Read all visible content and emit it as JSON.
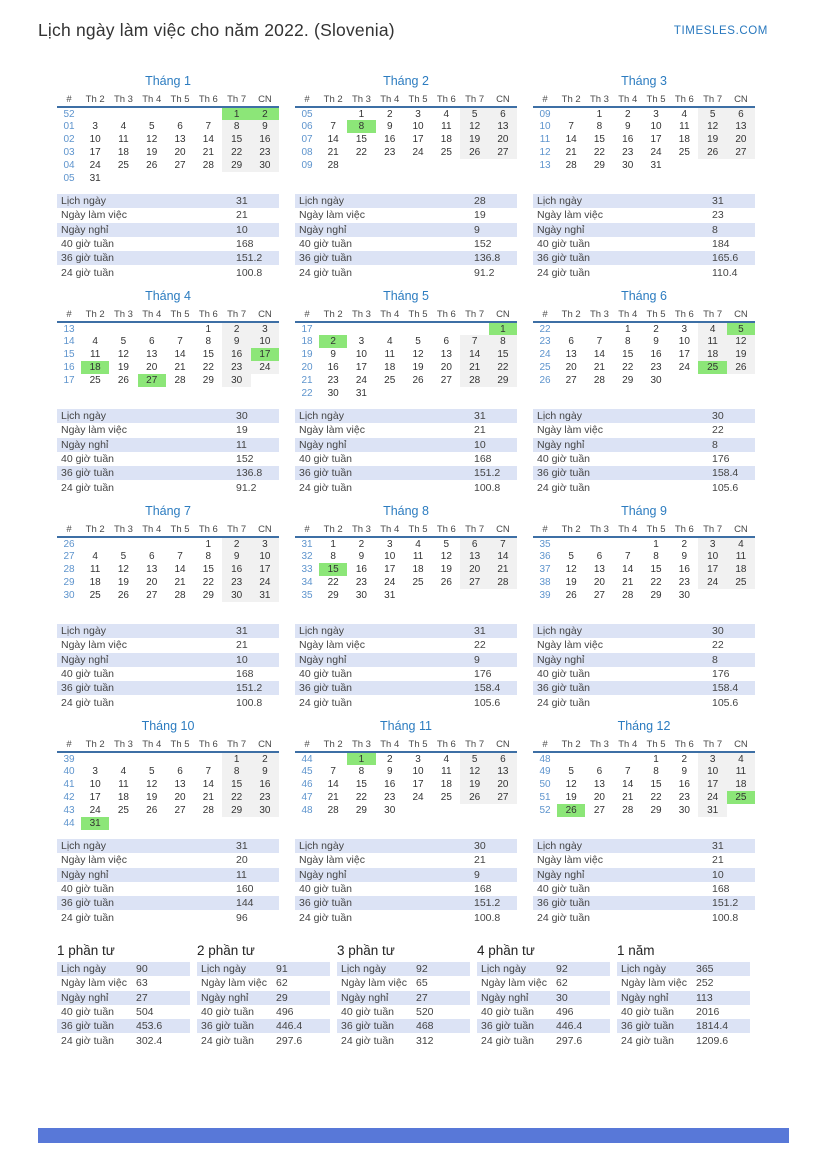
{
  "page": {
    "title": "Lịch ngày làm việc cho năm 2022. (Slovenia)",
    "site": "TIMESLES.COM"
  },
  "colors": {
    "accent_blue": "#2c7cc0",
    "week_number_blue": "#5e94cd",
    "header_rule_blue": "#3d6fa5",
    "holiday_green": "#8ce678",
    "weekend_gray": "#f1f1f1",
    "row_shade_blue": "#dce3f5",
    "footer_bar_blue": "#5878d8"
  },
  "calendar": {
    "day_headers": [
      "#",
      "Th 2",
      "Th 3",
      "Th 4",
      "Th 5",
      "Th 6",
      "Th 7",
      "CN"
    ],
    "stat_labels": [
      "Lịch ngày",
      "Ngày làm việc",
      "Ngày nghỉ",
      "40 giờ tuần",
      "36 giờ tuần",
      "24 giờ tuần"
    ],
    "months": [
      {
        "name": "Tháng 1",
        "holidays": [
          1,
          2
        ],
        "weeks": [
          {
            "n": "52",
            "d": [
              "",
              "",
              "",
              "",
              "",
              "1",
              "2"
            ]
          },
          {
            "n": "01",
            "d": [
              "3",
              "4",
              "5",
              "6",
              "7",
              "8",
              "9"
            ]
          },
          {
            "n": "02",
            "d": [
              "10",
              "11",
              "12",
              "13",
              "14",
              "15",
              "16"
            ]
          },
          {
            "n": "03",
            "d": [
              "17",
              "18",
              "19",
              "20",
              "21",
              "22",
              "23"
            ]
          },
          {
            "n": "04",
            "d": [
              "24",
              "25",
              "26",
              "27",
              "28",
              "29",
              "30"
            ]
          },
          {
            "n": "05",
            "d": [
              "31",
              "",
              "",
              "",
              "",
              "",
              ""
            ]
          }
        ],
        "stats": [
          "31",
          "21",
          "10",
          "168",
          "151.2",
          "100.8"
        ]
      },
      {
        "name": "Tháng 2",
        "holidays": [
          8
        ],
        "weeks": [
          {
            "n": "05",
            "d": [
              "",
              "1",
              "2",
              "3",
              "4",
              "5",
              "6"
            ]
          },
          {
            "n": "06",
            "d": [
              "7",
              "8",
              "9",
              "10",
              "11",
              "12",
              "13"
            ]
          },
          {
            "n": "07",
            "d": [
              "14",
              "15",
              "16",
              "17",
              "18",
              "19",
              "20"
            ]
          },
          {
            "n": "08",
            "d": [
              "21",
              "22",
              "23",
              "24",
              "25",
              "26",
              "27"
            ]
          },
          {
            "n": "09",
            "d": [
              "28",
              "",
              "",
              "",
              "",
              "",
              ""
            ]
          }
        ],
        "stats": [
          "28",
          "19",
          "9",
          "152",
          "136.8",
          "91.2"
        ]
      },
      {
        "name": "Tháng 3",
        "holidays": [],
        "weeks": [
          {
            "n": "09",
            "d": [
              "",
              "1",
              "2",
              "3",
              "4",
              "5",
              "6"
            ]
          },
          {
            "n": "10",
            "d": [
              "7",
              "8",
              "9",
              "10",
              "11",
              "12",
              "13"
            ]
          },
          {
            "n": "11",
            "d": [
              "14",
              "15",
              "16",
              "17",
              "18",
              "19",
              "20"
            ]
          },
          {
            "n": "12",
            "d": [
              "21",
              "22",
              "23",
              "24",
              "25",
              "26",
              "27"
            ]
          },
          {
            "n": "13",
            "d": [
              "28",
              "29",
              "30",
              "31",
              "",
              "",
              ""
            ]
          }
        ],
        "stats": [
          "31",
          "23",
          "8",
          "184",
          "165.6",
          "110.4"
        ]
      },
      {
        "name": "Tháng 4",
        "holidays": [
          17,
          18,
          27
        ],
        "weeks": [
          {
            "n": "13",
            "d": [
              "",
              "",
              "",
              "",
              "1",
              "2",
              "3"
            ]
          },
          {
            "n": "14",
            "d": [
              "4",
              "5",
              "6",
              "7",
              "8",
              "9",
              "10"
            ]
          },
          {
            "n": "15",
            "d": [
              "11",
              "12",
              "13",
              "14",
              "15",
              "16",
              "17"
            ]
          },
          {
            "n": "16",
            "d": [
              "18",
              "19",
              "20",
              "21",
              "22",
              "23",
              "24"
            ]
          },
          {
            "n": "17",
            "d": [
              "25",
              "26",
              "27",
              "28",
              "29",
              "30",
              ""
            ]
          }
        ],
        "stats": [
          "30",
          "19",
          "11",
          "152",
          "136.8",
          "91.2"
        ]
      },
      {
        "name": "Tháng 5",
        "holidays": [
          1,
          2
        ],
        "weeks": [
          {
            "n": "17",
            "d": [
              "",
              "",
              "",
              "",
              "",
              "",
              "1"
            ]
          },
          {
            "n": "18",
            "d": [
              "2",
              "3",
              "4",
              "5",
              "6",
              "7",
              "8"
            ]
          },
          {
            "n": "19",
            "d": [
              "9",
              "10",
              "11",
              "12",
              "13",
              "14",
              "15"
            ]
          },
          {
            "n": "20",
            "d": [
              "16",
              "17",
              "18",
              "19",
              "20",
              "21",
              "22"
            ]
          },
          {
            "n": "21",
            "d": [
              "23",
              "24",
              "25",
              "26",
              "27",
              "28",
              "29"
            ]
          },
          {
            "n": "22",
            "d": [
              "30",
              "31",
              "",
              "",
              "",
              "",
              ""
            ]
          }
        ],
        "stats": [
          "31",
          "21",
          "10",
          "168",
          "151.2",
          "100.8"
        ]
      },
      {
        "name": "Tháng 6",
        "holidays": [
          5,
          25
        ],
        "weeks": [
          {
            "n": "22",
            "d": [
              "",
              "",
              "1",
              "2",
              "3",
              "4",
              "5"
            ]
          },
          {
            "n": "23",
            "d": [
              "6",
              "7",
              "8",
              "9",
              "10",
              "11",
              "12"
            ]
          },
          {
            "n": "24",
            "d": [
              "13",
              "14",
              "15",
              "16",
              "17",
              "18",
              "19"
            ]
          },
          {
            "n": "25",
            "d": [
              "20",
              "21",
              "22",
              "23",
              "24",
              "25",
              "26"
            ]
          },
          {
            "n": "26",
            "d": [
              "27",
              "28",
              "29",
              "30",
              "",
              "",
              ""
            ]
          }
        ],
        "stats": [
          "30",
          "22",
          "8",
          "176",
          "158.4",
          "105.6"
        ]
      },
      {
        "name": "Tháng 7",
        "holidays": [],
        "weeks": [
          {
            "n": "26",
            "d": [
              "",
              "",
              "",
              "",
              "1",
              "2",
              "3"
            ]
          },
          {
            "n": "27",
            "d": [
              "4",
              "5",
              "6",
              "7",
              "8",
              "9",
              "10"
            ]
          },
          {
            "n": "28",
            "d": [
              "11",
              "12",
              "13",
              "14",
              "15",
              "16",
              "17"
            ]
          },
          {
            "n": "29",
            "d": [
              "18",
              "19",
              "20",
              "21",
              "22",
              "23",
              "24"
            ]
          },
          {
            "n": "30",
            "d": [
              "25",
              "26",
              "27",
              "28",
              "29",
              "30",
              "31"
            ]
          }
        ],
        "stats": [
          "31",
          "21",
          "10",
          "168",
          "151.2",
          "100.8"
        ]
      },
      {
        "name": "Tháng 8",
        "holidays": [
          15
        ],
        "weeks": [
          {
            "n": "31",
            "d": [
              "1",
              "2",
              "3",
              "4",
              "5",
              "6",
              "7"
            ]
          },
          {
            "n": "32",
            "d": [
              "8",
              "9",
              "10",
              "11",
              "12",
              "13",
              "14"
            ]
          },
          {
            "n": "33",
            "d": [
              "15",
              "16",
              "17",
              "18",
              "19",
              "20",
              "21"
            ]
          },
          {
            "n": "34",
            "d": [
              "22",
              "23",
              "24",
              "25",
              "26",
              "27",
              "28"
            ]
          },
          {
            "n": "35",
            "d": [
              "29",
              "30",
              "31",
              "",
              "",
              "",
              ""
            ]
          }
        ],
        "stats": [
          "31",
          "22",
          "9",
          "176",
          "158.4",
          "105.6"
        ]
      },
      {
        "name": "Tháng 9",
        "holidays": [],
        "weeks": [
          {
            "n": "35",
            "d": [
              "",
              "",
              "",
              "1",
              "2",
              "3",
              "4"
            ]
          },
          {
            "n": "36",
            "d": [
              "5",
              "6",
              "7",
              "8",
              "9",
              "10",
              "11"
            ]
          },
          {
            "n": "37",
            "d": [
              "12",
              "13",
              "14",
              "15",
              "16",
              "17",
              "18"
            ]
          },
          {
            "n": "38",
            "d": [
              "19",
              "20",
              "21",
              "22",
              "23",
              "24",
              "25"
            ]
          },
          {
            "n": "39",
            "d": [
              "26",
              "27",
              "28",
              "29",
              "30",
              "",
              ""
            ]
          }
        ],
        "stats": [
          "30",
          "22",
          "8",
          "176",
          "158.4",
          "105.6"
        ]
      },
      {
        "name": "Tháng 10",
        "holidays": [
          31
        ],
        "weeks": [
          {
            "n": "39",
            "d": [
              "",
              "",
              "",
              "",
              "",
              "1",
              "2"
            ]
          },
          {
            "n": "40",
            "d": [
              "3",
              "4",
              "5",
              "6",
              "7",
              "8",
              "9"
            ]
          },
          {
            "n": "41",
            "d": [
              "10",
              "11",
              "12",
              "13",
              "14",
              "15",
              "16"
            ]
          },
          {
            "n": "42",
            "d": [
              "17",
              "18",
              "19",
              "20",
              "21",
              "22",
              "23"
            ]
          },
          {
            "n": "43",
            "d": [
              "24",
              "25",
              "26",
              "27",
              "28",
              "29",
              "30"
            ]
          },
          {
            "n": "44",
            "d": [
              "31",
              "",
              "",
              "",
              "",
              "",
              ""
            ]
          }
        ],
        "stats": [
          "31",
          "20",
          "11",
          "160",
          "144",
          "96"
        ]
      },
      {
        "name": "Tháng 11",
        "holidays": [
          1
        ],
        "weeks": [
          {
            "n": "44",
            "d": [
              "",
              "1",
              "2",
              "3",
              "4",
              "5",
              "6"
            ]
          },
          {
            "n": "45",
            "d": [
              "7",
              "8",
              "9",
              "10",
              "11",
              "12",
              "13"
            ]
          },
          {
            "n": "46",
            "d": [
              "14",
              "15",
              "16",
              "17",
              "18",
              "19",
              "20"
            ]
          },
          {
            "n": "47",
            "d": [
              "21",
              "22",
              "23",
              "24",
              "25",
              "26",
              "27"
            ]
          },
          {
            "n": "48",
            "d": [
              "28",
              "29",
              "30",
              "",
              "",
              "",
              ""
            ]
          }
        ],
        "stats": [
          "30",
          "21",
          "9",
          "168",
          "151.2",
          "100.8"
        ]
      },
      {
        "name": "Tháng 12",
        "holidays": [
          25,
          26
        ],
        "weeks": [
          {
            "n": "48",
            "d": [
              "",
              "",
              "",
              "1",
              "2",
              "3",
              "4"
            ]
          },
          {
            "n": "49",
            "d": [
              "5",
              "6",
              "7",
              "8",
              "9",
              "10",
              "11"
            ]
          },
          {
            "n": "50",
            "d": [
              "12",
              "13",
              "14",
              "15",
              "16",
              "17",
              "18"
            ]
          },
          {
            "n": "51",
            "d": [
              "19",
              "20",
              "21",
              "22",
              "23",
              "24",
              "25"
            ]
          },
          {
            "n": "52",
            "d": [
              "26",
              "27",
              "28",
              "29",
              "30",
              "31",
              ""
            ]
          }
        ],
        "stats": [
          "31",
          "21",
          "10",
          "168",
          "151.2",
          "100.8"
        ]
      }
    ],
    "quarters": [
      {
        "name": "1 phần tư",
        "stats": [
          "90",
          "63",
          "27",
          "504",
          "453.6",
          "302.4"
        ]
      },
      {
        "name": "2 phần tư",
        "stats": [
          "91",
          "62",
          "29",
          "496",
          "446.4",
          "297.6"
        ]
      },
      {
        "name": "3 phần tư",
        "stats": [
          "92",
          "65",
          "27",
          "520",
          "468",
          "312"
        ]
      },
      {
        "name": "4 phần tư",
        "stats": [
          "92",
          "62",
          "30",
          "496",
          "446.4",
          "297.6"
        ]
      },
      {
        "name": "1 năm",
        "stats": [
          "365",
          "252",
          "113",
          "2016",
          "1814.4",
          "1209.6"
        ]
      }
    ]
  }
}
